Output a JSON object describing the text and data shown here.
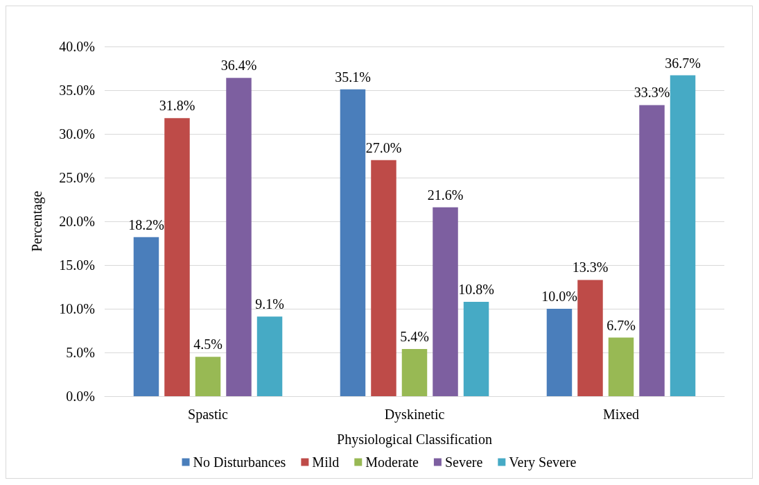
{
  "chart_data": {
    "type": "bar",
    "xlabel": "Physiological Classification",
    "ylabel": "Percentage",
    "categories": [
      "Spastic",
      "Dyskinetic",
      "Mixed"
    ],
    "series": [
      {
        "name": "No Disturbances",
        "color": "#4a7ebb",
        "values": [
          18.2,
          35.1,
          10.0
        ],
        "value_labels": [
          "18.2%",
          "35.1%",
          "10.0%"
        ]
      },
      {
        "name": "Mild",
        "color": "#be4b48",
        "values": [
          31.8,
          27.0,
          13.3
        ],
        "value_labels": [
          "31.8%",
          "27.0%",
          "13.3%"
        ]
      },
      {
        "name": "Moderate",
        "color": "#98b954",
        "values": [
          4.5,
          5.4,
          6.7
        ],
        "value_labels": [
          "4.5%",
          "5.4%",
          "6.7%"
        ]
      },
      {
        "name": "Severe",
        "color": "#7d5fa0",
        "values": [
          36.4,
          21.6,
          33.3
        ],
        "value_labels": [
          "36.4%",
          "21.6%",
          "33.3%"
        ]
      },
      {
        "name": "Very Severe",
        "color": "#46aac5",
        "values": [
          9.1,
          10.8,
          36.7
        ],
        "value_labels": [
          "9.1%",
          "10.8%",
          "36.7%"
        ]
      }
    ],
    "ylim": [
      0,
      40
    ],
    "yticks": [
      {
        "value": 0,
        "label": "0.0%"
      },
      {
        "value": 5,
        "label": "5.0%"
      },
      {
        "value": 10,
        "label": "10.0%"
      },
      {
        "value": 15,
        "label": "15.0%"
      },
      {
        "value": 20,
        "label": "20.0%"
      },
      {
        "value": 25,
        "label": "25.0%"
      },
      {
        "value": 30,
        "label": "30.0%"
      },
      {
        "value": 35,
        "label": "35.0%"
      },
      {
        "value": 40,
        "label": "40.0%"
      }
    ],
    "grid": "y",
    "legend": "bottom"
  }
}
